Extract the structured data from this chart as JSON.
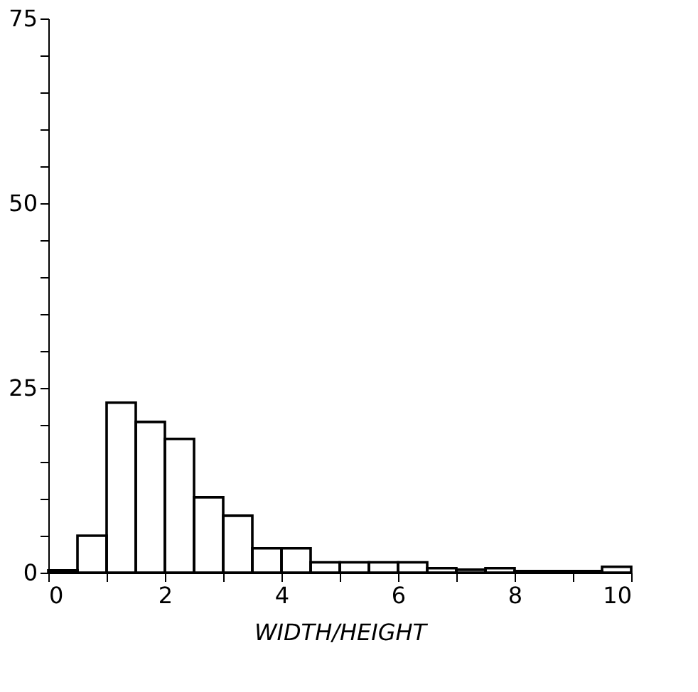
{
  "chart_data": {
    "type": "histogram",
    "xlabel": "WIDTH/HEIGHT",
    "bins": [
      0,
      0.5,
      1,
      1.5,
      2,
      2.5,
      3,
      3.5,
      4,
      4.5,
      5,
      5.5,
      6,
      6.5,
      7,
      7.5,
      8,
      8.5,
      9,
      9.5,
      10
    ],
    "values": [
      0.3,
      5,
      23,
      20.4,
      18.1,
      10.2,
      7.7,
      3.3,
      3.3,
      1.4,
      1.4,
      1.4,
      1.4,
      0.6,
      0.4,
      0.6,
      0.2,
      0.2,
      0.2,
      0.8
    ],
    "color": "#000000",
    "xlim": [
      0,
      10
    ],
    "ylim": [
      0,
      75
    ],
    "xticks": [
      0,
      {
        "value": 1,
        "label": null
      },
      2,
      {
        "value": 3,
        "label": null
      },
      4,
      {
        "value": 5,
        "label": null
      },
      6,
      {
        "value": 7,
        "label": null
      },
      8,
      {
        "value": 9,
        "label": null
      },
      10
    ],
    "yticks": [
      0,
      {
        "value": 5,
        "label": null
      },
      {
        "value": 10,
        "label": null
      },
      {
        "value": 15,
        "label": null
      },
      {
        "value": 20,
        "label": null
      },
      25,
      {
        "value": 30,
        "label": null
      },
      {
        "value": 35,
        "label": null
      },
      {
        "value": 40,
        "label": null
      },
      {
        "value": 45,
        "label": null
      },
      50,
      {
        "value": 55,
        "label": null
      },
      {
        "value": 60,
        "label": null
      },
      {
        "value": 65,
        "label": null
      },
      {
        "value": 70,
        "label": null
      },
      75
    ],
    "grid": false
  }
}
